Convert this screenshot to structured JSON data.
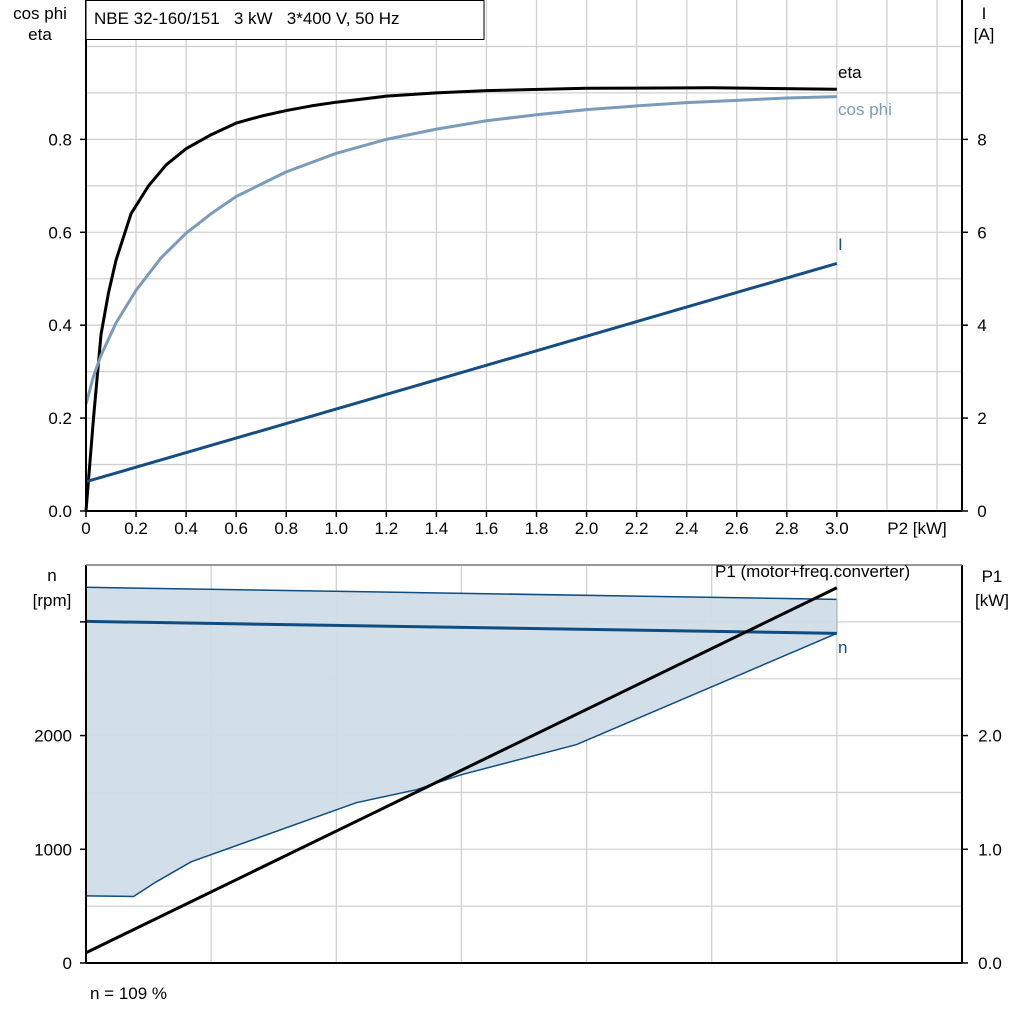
{
  "chart_data": [
    {
      "type": "line",
      "title": "NBE 32-160/151   3 kW   3*400 V, 50 Hz",
      "xlabel": "P2 [kW]",
      "ylabel_left": [
        "cos phi",
        "eta"
      ],
      "ylabel_right": [
        "I",
        "[A]"
      ],
      "xlim": [
        0,
        3.5
      ],
      "ylim_left": [
        0,
        1.1
      ],
      "ylim_right": [
        0,
        11
      ],
      "x_ticks": [
        "0",
        "0.2",
        "0.4",
        "0.6",
        "0.8",
        "1.0",
        "1.2",
        "1.4",
        "1.6",
        "1.8",
        "2.0",
        "2.2",
        "2.4",
        "2.6",
        "2.8",
        "3.0"
      ],
      "y_ticks_left": [
        "0.0",
        "0.2",
        "0.4",
        "0.6",
        "0.8"
      ],
      "y_ticks_right": [
        "0",
        "2",
        "4",
        "6",
        "8"
      ],
      "grid": true,
      "series": [
        {
          "name": "eta",
          "axis": "left",
          "color": "#000000",
          "x": [
            0,
            0.03,
            0.06,
            0.09,
            0.12,
            0.18,
            0.25,
            0.32,
            0.4,
            0.5,
            0.6,
            0.7,
            0.8,
            0.9,
            1.0,
            1.2,
            1.4,
            1.6,
            2.0,
            2.5,
            3.0
          ],
          "y": [
            0,
            0.2,
            0.38,
            0.47,
            0.54,
            0.64,
            0.7,
            0.745,
            0.78,
            0.81,
            0.835,
            0.85,
            0.862,
            0.872,
            0.88,
            0.893,
            0.9,
            0.905,
            0.91,
            0.911,
            0.908
          ]
        },
        {
          "name": "cos phi",
          "axis": "left",
          "color": "#7A9CBA",
          "x": [
            0,
            0.03,
            0.06,
            0.12,
            0.2,
            0.3,
            0.4,
            0.5,
            0.6,
            0.8,
            1.0,
            1.2,
            1.4,
            1.6,
            1.8,
            2.0,
            2.2,
            2.4,
            2.6,
            2.8,
            3.0
          ],
          "y": [
            0.23,
            0.29,
            0.335,
            0.405,
            0.475,
            0.545,
            0.598,
            0.64,
            0.677,
            0.73,
            0.77,
            0.8,
            0.822,
            0.84,
            0.853,
            0.864,
            0.872,
            0.879,
            0.884,
            0.889,
            0.892
          ]
        },
        {
          "name": "I",
          "axis": "right",
          "color": "#154E82",
          "x": [
            0,
            3.0
          ],
          "y": [
            0.63,
            5.33
          ]
        }
      ]
    },
    {
      "type": "line",
      "ylabel_left": [
        "n",
        "[rpm]"
      ],
      "ylabel_right": [
        "P1",
        "[kW]"
      ],
      "xlim": [
        0,
        3.5
      ],
      "ylim_left": [
        0,
        3500
      ],
      "ylim_right": [
        0,
        3.5
      ],
      "y_ticks_left": [
        "0",
        "1000",
        "2000"
      ],
      "y_ticks_right": [
        "0.0",
        "1.0",
        "2.0"
      ],
      "grid": true,
      "annotation": "n = 109 %",
      "band": {
        "color": "#D0DCE7",
        "upper": {
          "x": [
            0,
            3.0
          ],
          "y": [
            3304,
            3198
          ]
        },
        "lower": {
          "x": [
            0,
            0.19,
            0.28,
            0.42,
            1.08,
            1.32,
            1.5,
            1.96,
            3.0
          ],
          "y": [
            590,
            585,
            713,
            890,
            1410,
            1524,
            1656,
            1921,
            2899
          ]
        }
      },
      "series": [
        {
          "name": "n",
          "axis": "left",
          "color": "#0F4C81",
          "x": [
            0,
            3.0
          ],
          "y": [
            3004,
            2899
          ]
        },
        {
          "name": "P1 (motor+freq.converter)",
          "axis": "right",
          "color": "#000000",
          "x": [
            0,
            3.0
          ],
          "y": [
            0.09,
            3.3
          ]
        }
      ]
    }
  ]
}
